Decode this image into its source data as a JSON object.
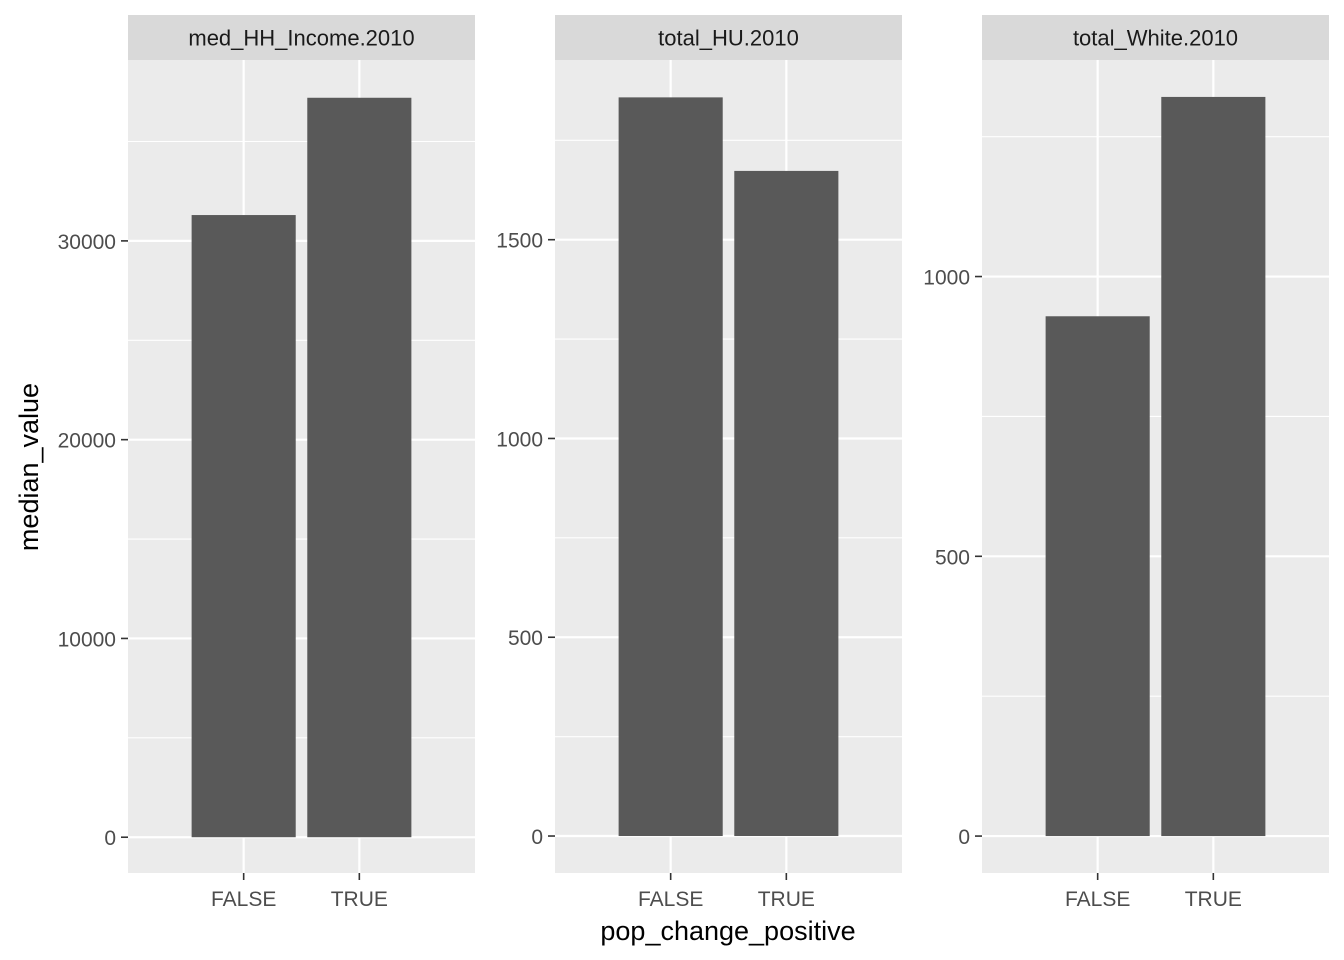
{
  "chart_data": {
    "type": "bar",
    "facet_layout": "1 row, 3 columns, independent y scales",
    "xlabel": "pop_change_positive",
    "ylabel": "median_value",
    "categories": [
      "FALSE",
      "TRUE"
    ],
    "grid": true,
    "legend": "none",
    "colors": {
      "bar": "#595959",
      "panel_background": "#ebebeb",
      "strip_background": "#d9d9d9",
      "gridline": "#ffffff"
    },
    "panels": [
      {
        "strip": "med_HH_Income.2010",
        "values": [
          31300,
          37200
        ],
        "ylim": [
          -1800,
          39100
        ],
        "yticks": [
          0,
          10000,
          20000,
          30000
        ],
        "ytick_labels": [
          "0",
          "10000",
          "20000",
          "30000"
        ]
      },
      {
        "strip": "total_HU.2010",
        "values": [
          1858,
          1673
        ],
        "ylim": [
          -93,
          1952
        ],
        "yticks": [
          0,
          500,
          1000,
          1500
        ],
        "ytick_labels": [
          "0",
          "500",
          "1000",
          "1500"
        ]
      },
      {
        "strip": "total_White.2010",
        "values": [
          929,
          1321
        ],
        "ylim": [
          -66,
          1387
        ],
        "yticks": [
          0,
          500,
          1000
        ],
        "ytick_labels": [
          "0",
          "500",
          "1000"
        ]
      }
    ]
  }
}
